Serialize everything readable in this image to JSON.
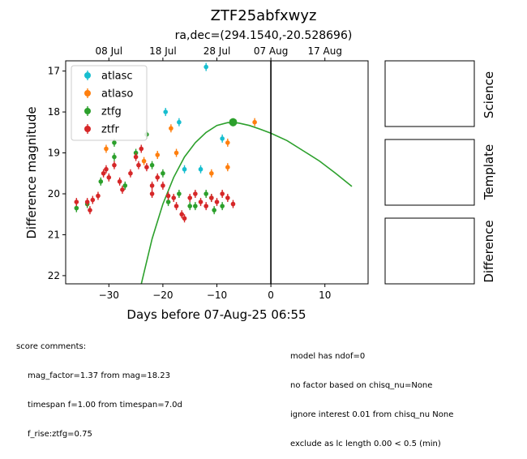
{
  "chart_data": {
    "type": "scatter",
    "title": "ZTF25abfxwyz",
    "subtitle": "ra,dec=(294.1540,-20.528696)",
    "xlabel": "Days before 07-Aug-25 06:55",
    "ylabel": "Difference magnitude",
    "xlim": [
      -38,
      18
    ],
    "ylim": [
      22.2,
      16.75
    ],
    "y_inverted": true,
    "x_ticks": [
      -30,
      -20,
      -10,
      0,
      10
    ],
    "y_ticks": [
      17,
      18,
      19,
      20,
      21,
      22
    ],
    "top_axis_ticks": [
      {
        "label": "08 Jul",
        "x": -30
      },
      {
        "label": "18 Jul",
        "x": -20
      },
      {
        "label": "28 Jul",
        "x": -10
      },
      {
        "label": "07 Aug",
        "x": 0
      },
      {
        "label": "17 Aug",
        "x": 10
      }
    ],
    "vline_x": 0,
    "legend_position": "upper-left",
    "series": [
      {
        "name": "atlasc",
        "color": "#17becf",
        "points": [
          {
            "x": -19.5,
            "y": 18.0
          },
          {
            "x": -17.0,
            "y": 18.25
          },
          {
            "x": -16.0,
            "y": 19.4
          },
          {
            "x": -13.0,
            "y": 19.4
          },
          {
            "x": -12.0,
            "y": 16.9
          },
          {
            "x": -9.0,
            "y": 18.65
          }
        ]
      },
      {
        "name": "atlaso",
        "color": "#ff7f0e",
        "points": [
          {
            "x": -30.5,
            "y": 18.9
          },
          {
            "x": -23.5,
            "y": 19.2
          },
          {
            "x": -21.0,
            "y": 19.05
          },
          {
            "x": -18.5,
            "y": 18.4
          },
          {
            "x": -17.5,
            "y": 19.0
          },
          {
            "x": -11.0,
            "y": 19.5
          },
          {
            "x": -8.0,
            "y": 18.75
          },
          {
            "x": -8.0,
            "y": 19.35
          },
          {
            "x": -3.0,
            "y": 18.25
          }
        ]
      },
      {
        "name": "ztfg",
        "color": "#2ca02c",
        "points": [
          {
            "x": -36.0,
            "y": 20.35
          },
          {
            "x": -34.0,
            "y": 20.25
          },
          {
            "x": -31.5,
            "y": 19.7
          },
          {
            "x": -29.0,
            "y": 18.75
          },
          {
            "x": -29.0,
            "y": 19.1
          },
          {
            "x": -27.0,
            "y": 19.8
          },
          {
            "x": -25.0,
            "y": 19.0
          },
          {
            "x": -23.0,
            "y": 18.55
          },
          {
            "x": -22.0,
            "y": 19.3
          },
          {
            "x": -20.0,
            "y": 19.5
          },
          {
            "x": -19.0,
            "y": 20.2
          },
          {
            "x": -17.0,
            "y": 20.0
          },
          {
            "x": -15.0,
            "y": 20.3
          },
          {
            "x": -14.0,
            "y": 20.3
          },
          {
            "x": -12.0,
            "y": 20.0
          },
          {
            "x": -11.0,
            "y": 20.1
          },
          {
            "x": -10.5,
            "y": 20.4
          },
          {
            "x": -9.0,
            "y": 20.3
          },
          {
            "x": -7.0,
            "y": 18.25
          }
        ]
      },
      {
        "name": "ztfr",
        "color": "#d62728",
        "points": [
          {
            "x": -36.0,
            "y": 20.2
          },
          {
            "x": -34.0,
            "y": 20.2
          },
          {
            "x": -33.5,
            "y": 20.4
          },
          {
            "x": -33.0,
            "y": 20.15
          },
          {
            "x": -32.0,
            "y": 20.05
          },
          {
            "x": -31.0,
            "y": 19.5
          },
          {
            "x": -30.5,
            "y": 19.4
          },
          {
            "x": -30.0,
            "y": 19.6
          },
          {
            "x": -29.0,
            "y": 19.3
          },
          {
            "x": -28.0,
            "y": 19.7
          },
          {
            "x": -27.5,
            "y": 19.9
          },
          {
            "x": -26.0,
            "y": 19.5
          },
          {
            "x": -25.0,
            "y": 19.1
          },
          {
            "x": -24.5,
            "y": 19.3
          },
          {
            "x": -24.0,
            "y": 18.9
          },
          {
            "x": -23.0,
            "y": 19.35
          },
          {
            "x": -22.0,
            "y": 19.8
          },
          {
            "x": -22.0,
            "y": 20.0
          },
          {
            "x": -21.0,
            "y": 19.6
          },
          {
            "x": -20.0,
            "y": 19.8
          },
          {
            "x": -19.0,
            "y": 20.05
          },
          {
            "x": -18.0,
            "y": 20.1
          },
          {
            "x": -17.5,
            "y": 20.3
          },
          {
            "x": -16.5,
            "y": 20.5
          },
          {
            "x": -16.0,
            "y": 20.6
          },
          {
            "x": -15.0,
            "y": 20.1
          },
          {
            "x": -14.0,
            "y": 20.0
          },
          {
            "x": -13.0,
            "y": 20.2
          },
          {
            "x": -12.0,
            "y": 20.3
          },
          {
            "x": -11.0,
            "y": 20.1
          },
          {
            "x": -10.0,
            "y": 20.2
          },
          {
            "x": -9.0,
            "y": 20.0
          },
          {
            "x": -8.0,
            "y": 20.1
          },
          {
            "x": -7.0,
            "y": 20.25
          }
        ]
      }
    ],
    "model_curve": {
      "color": "#2ca02c",
      "points": [
        {
          "x": -24.0,
          "y": 22.2
        },
        {
          "x": -22.0,
          "y": 21.1
        },
        {
          "x": -20.0,
          "y": 20.25
        },
        {
          "x": -18.0,
          "y": 19.6
        },
        {
          "x": -16.0,
          "y": 19.1
        },
        {
          "x": -14.0,
          "y": 18.75
        },
        {
          "x": -12.0,
          "y": 18.5
        },
        {
          "x": -10.0,
          "y": 18.33
        },
        {
          "x": -8.0,
          "y": 18.26
        },
        {
          "x": -6.0,
          "y": 18.27
        },
        {
          "x": -4.0,
          "y": 18.33
        },
        {
          "x": -2.0,
          "y": 18.42
        },
        {
          "x": 0.0,
          "y": 18.52
        },
        {
          "x": 3.0,
          "y": 18.7
        },
        {
          "x": 6.0,
          "y": 18.95
        },
        {
          "x": 9.0,
          "y": 19.2
        },
        {
          "x": 12.0,
          "y": 19.5
        },
        {
          "x": 15.0,
          "y": 19.82
        }
      ]
    }
  },
  "side_panels": [
    "Science",
    "Template",
    "Difference"
  ],
  "comments": {
    "left_title": "score comments:",
    "left_lines": [
      "mag_factor=1.37 from mag=18.23",
      "timespan f=1.00 from timespan=7.0d",
      "f_rise:ztfg=0.75"
    ],
    "right_lines": [
      "model has ndof=0",
      "no factor based on chisq_nu=None",
      "ignore interest 0.01 from chisq_nu None",
      "exclude as lc length 0.00 < 0.5 (min)"
    ]
  }
}
